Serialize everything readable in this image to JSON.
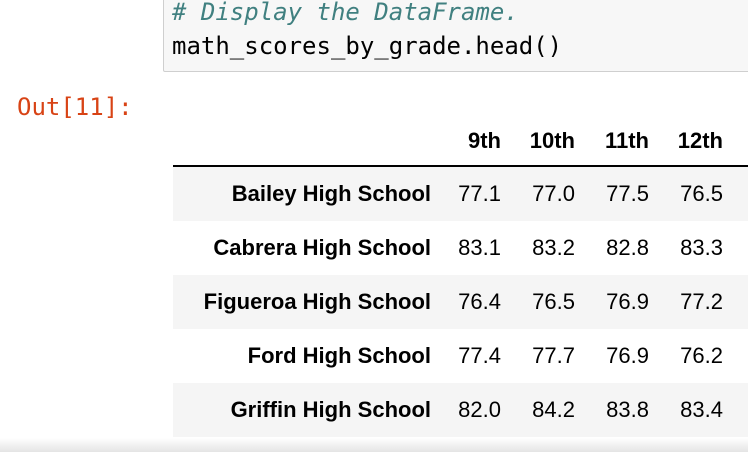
{
  "code_cell": {
    "comment": "# Display the DataFrame.",
    "statement": "math_scores_by_grade.head()"
  },
  "output": {
    "prompt": "Out[11]:",
    "table": {
      "columns": [
        "9th",
        "10th",
        "11th",
        "12th"
      ],
      "rows": [
        {
          "index": "Bailey High School",
          "values": [
            "77.1",
            "77.0",
            "77.5",
            "76.5"
          ]
        },
        {
          "index": "Cabrera High School",
          "values": [
            "83.1",
            "83.2",
            "82.8",
            "83.3"
          ]
        },
        {
          "index": "Figueroa High School",
          "values": [
            "76.4",
            "76.5",
            "76.9",
            "77.2"
          ]
        },
        {
          "index": "Ford High School",
          "values": [
            "77.4",
            "77.7",
            "76.9",
            "76.2"
          ]
        },
        {
          "index": "Griffin High School",
          "values": [
            "82.0",
            "84.2",
            "83.8",
            "83.4"
          ]
        }
      ]
    }
  },
  "colors": {
    "comment": "#408080",
    "prompt": "#d84315",
    "stripe": "#f5f5f5"
  }
}
